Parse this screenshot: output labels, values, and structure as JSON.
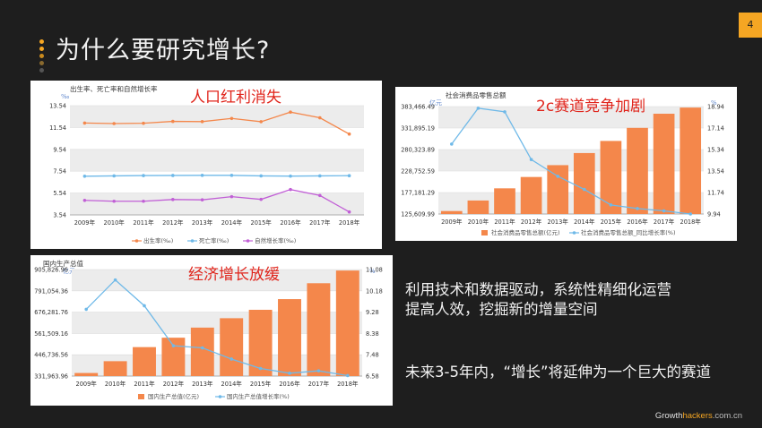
{
  "slide": {
    "title": "为什么要研究增长?",
    "page_number": "4",
    "points": [
      "利用技术和数据驱动，系统性精细化运营",
      "提高人效，挖掘新的增量空间",
      "未来3-5年内，“增长”将延伸为一个巨大的赛道"
    ],
    "footer": {
      "brand_a": "Growth",
      "brand_b": "hackers",
      "domain": ".com.cn"
    },
    "colors": {
      "background": "#1e1e1e",
      "accent": "#f5a623",
      "overlay_text": "#e0241b",
      "bar": "#f4874b",
      "line_blue": "#6fb9e8"
    }
  },
  "overlays": {
    "chart1": "人口红利消失",
    "chart2": "2c赛道竞争加剧",
    "chart3": "经济增长放缓"
  },
  "chart_data": [
    {
      "type": "line",
      "title": "出生率、死亡率和自然增长率",
      "ylabel": "‰",
      "categories": [
        "2009年",
        "2010年",
        "2011年",
        "2012年",
        "2013年",
        "2014年",
        "2015年",
        "2016年",
        "2017年",
        "2018年"
      ],
      "yticks": [
        "13.54",
        "11.54",
        "9.54",
        "7.54",
        "5.54",
        "3.54"
      ],
      "ylim": [
        3.54,
        13.54
      ],
      "series": [
        {
          "name": "出生率(‰)",
          "color": "#f4874b",
          "values": [
            11.95,
            11.9,
            11.93,
            12.1,
            12.08,
            12.37,
            12.07,
            12.95,
            12.43,
            10.94
          ]
        },
        {
          "name": "死亡率(‰)",
          "color": "#6fb9e8",
          "values": [
            7.08,
            7.11,
            7.14,
            7.15,
            7.16,
            7.16,
            7.11,
            7.09,
            7.11,
            7.13
          ]
        },
        {
          "name": "自然增长率(‰)",
          "color": "#c15fd6",
          "values": [
            4.87,
            4.79,
            4.79,
            4.95,
            4.92,
            5.21,
            4.96,
            5.86,
            5.32,
            3.81
          ]
        }
      ]
    },
    {
      "type": "bar",
      "title": "社会消费品零售总额",
      "ylabel": "亿元",
      "y2label": "%",
      "categories": [
        "2009年",
        "2010年",
        "2011年",
        "2012年",
        "2013年",
        "2014年",
        "2015年",
        "2016年",
        "2017年",
        "2018年"
      ],
      "yticks": [
        "383,466.49",
        "331,895.19",
        "280,323.89",
        "228,752.59",
        "177,181.29",
        "125,609.99"
      ],
      "ylim": [
        125609.99,
        383466.49
      ],
      "y2ticks": [
        "18.94",
        "17.14",
        "15.34",
        "13.54",
        "11.74",
        "9.94"
      ],
      "y2lim": [
        9.94,
        18.94
      ],
      "series": [
        {
          "name": "社会消费品零售总额(亿元)",
          "kind": "bar",
          "color": "#f4874b",
          "values": [
            132678,
            158008,
            187206,
            214433,
            242843,
            271896,
            300931,
            332316,
            366262,
            380987
          ]
        },
        {
          "name": "社会消费品零售总额_同比增长率(%)",
          "kind": "line",
          "color": "#6fb9e8",
          "values": [
            15.8,
            18.8,
            18.5,
            14.5,
            13.1,
            12.0,
            10.7,
            10.4,
            10.2,
            9.94
          ]
        }
      ]
    },
    {
      "type": "bar",
      "title": "国内生产总值",
      "ylabel": "亿元",
      "y2label": "%",
      "categories": [
        "2009年",
        "2010年",
        "2011年",
        "2012年",
        "2013年",
        "2014年",
        "2015年",
        "2016年",
        "2017年",
        "2018年"
      ],
      "yticks": [
        "905,826.96",
        "791,054.36",
        "676,281.76",
        "561,509.16",
        "446,736.56",
        "331,963.96"
      ],
      "ylim": [
        331963.96,
        905826.96
      ],
      "y2ticks": [
        "11.08",
        "10.18",
        "9.28",
        "8.38",
        "7.48",
        "6.58"
      ],
      "y2lim": [
        6.58,
        11.08
      ],
      "series": [
        {
          "name": "国内生产总值(亿元)",
          "kind": "bar",
          "color": "#f4874b",
          "values": [
            348518,
            412119,
            487940,
            538580,
            592963,
            643563,
            688858,
            746395,
            832036,
            900309
          ]
        },
        {
          "name": "国内生产总值增长率(%)",
          "kind": "line",
          "color": "#6fb9e8",
          "values": [
            9.4,
            10.64,
            9.55,
            7.86,
            7.77,
            7.3,
            6.9,
            6.7,
            6.8,
            6.6
          ]
        }
      ]
    }
  ]
}
